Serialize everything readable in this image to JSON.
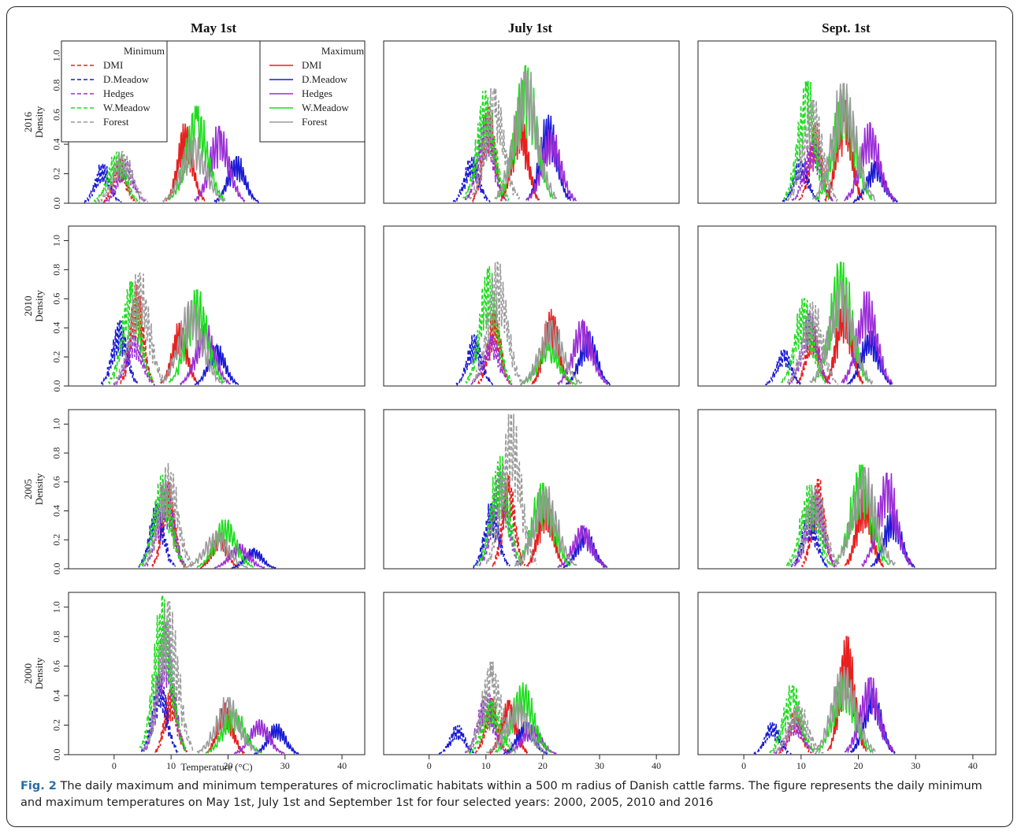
{
  "caption": {
    "label": "Fig. 2",
    "text": "The daily maximum and minimum temperatures of microclimatic habitats within a 500 m radius of Danish cattle farms. The figure represents the daily minimum and maximum temperatures on May 1st, July 1st and September 1st for four selected years: 2000, 2005, 2010 and 2016"
  },
  "chart_data": {
    "type": "line",
    "columns": [
      "May 1st",
      "July 1st",
      "Sept. 1st"
    ],
    "rows": [
      "2016",
      "2010",
      "2005",
      "2000"
    ],
    "ylabel": "Density",
    "xlabel": "Temperature (°C)",
    "xlim": [
      -8,
      44
    ],
    "ylim": [
      0,
      1.1
    ],
    "xticks": [
      "0",
      "10",
      "20",
      "30",
      "40"
    ],
    "yticks": [
      "0.0",
      "0.2",
      "0.4",
      "0.6",
      "0.8",
      "1.0"
    ],
    "legend_min": {
      "title": "Minimum",
      "style": "dashed",
      "entries": [
        "DMI",
        "D.Meadow",
        "Hedges",
        "W.Meadow",
        "Forest"
      ]
    },
    "legend_max": {
      "title": "Maximum",
      "style": "solid",
      "entries": [
        "DMI",
        "D.Meadow",
        "Hedges",
        "W.Meadow",
        "Forest"
      ]
    },
    "colors": {
      "DMI": "#e8201f",
      "D.Meadow": "#1b1bd6",
      "Hedges": "#9b2fd6",
      "W.Meadow": "#1fdc1f",
      "Forest": "#9a9a9a"
    },
    "habitats": [
      "DMI",
      "D.Meadow",
      "Hedges",
      "W.Meadow",
      "Forest"
    ],
    "panels": [
      {
        "row": "2016",
        "column": "May 1st",
        "min": {
          "DMI": [
            1,
            0.3
          ],
          "D.Meadow": [
            -2,
            0.27
          ],
          "Hedges": [
            2,
            0.3
          ],
          "W.Meadow": [
            0.5,
            0.35
          ],
          "Forest": [
            1.5,
            0.35
          ]
        },
        "max": {
          "DMI": [
            12.5,
            0.54
          ],
          "D.Meadow": [
            21.5,
            0.32
          ],
          "Hedges": [
            18.5,
            0.52
          ],
          "W.Meadow": [
            14.5,
            0.66
          ],
          "Forest": [
            14,
            0.45
          ]
        }
      },
      {
        "row": "2016",
        "column": "July 1st",
        "min": {
          "DMI": [
            10.5,
            0.65
          ],
          "D.Meadow": [
            7.5,
            0.32
          ],
          "Hedges": [
            10,
            0.6
          ],
          "W.Meadow": [
            10,
            0.76
          ],
          "Forest": [
            11.5,
            0.78
          ]
        },
        "max": {
          "DMI": [
            16,
            0.65
          ],
          "D.Meadow": [
            21,
            0.6
          ],
          "Hedges": [
            21.5,
            0.5
          ],
          "W.Meadow": [
            17,
            0.93
          ],
          "Forest": [
            17,
            0.9
          ]
        }
      },
      {
        "row": "2016",
        "column": "Sept. 1st",
        "min": {
          "DMI": [
            12.5,
            0.55
          ],
          "D.Meadow": [
            10,
            0.3
          ],
          "Hedges": [
            12,
            0.45
          ],
          "W.Meadow": [
            11,
            0.83
          ],
          "Forest": [
            12,
            0.7
          ]
        },
        "max": {
          "DMI": [
            17.5,
            0.7
          ],
          "D.Meadow": [
            23,
            0.28
          ],
          "Hedges": [
            22,
            0.55
          ],
          "W.Meadow": [
            17.5,
            0.78
          ],
          "Forest": [
            17.5,
            0.81
          ]
        }
      },
      {
        "row": "2010",
        "column": "May 1st",
        "min": {
          "DMI": [
            4,
            0.7
          ],
          "D.Meadow": [
            1,
            0.45
          ],
          "Hedges": [
            3.5,
            0.35
          ],
          "W.Meadow": [
            3,
            0.72
          ],
          "Forest": [
            4.5,
            0.78
          ]
        },
        "max": {
          "DMI": [
            11.5,
            0.43
          ],
          "D.Meadow": [
            18,
            0.28
          ],
          "Hedges": [
            16,
            0.42
          ],
          "W.Meadow": [
            14.5,
            0.66
          ],
          "Forest": [
            13.5,
            0.59
          ]
        }
      },
      {
        "row": "2010",
        "column": "July 1st",
        "min": {
          "DMI": [
            11.5,
            0.5
          ],
          "D.Meadow": [
            8,
            0.35
          ],
          "Hedges": [
            11,
            0.35
          ],
          "W.Meadow": [
            10.5,
            0.82
          ],
          "Forest": [
            12,
            0.85
          ]
        },
        "max": {
          "DMI": [
            21.5,
            0.53
          ],
          "D.Meadow": [
            28,
            0.37
          ],
          "Hedges": [
            27,
            0.45
          ],
          "W.Meadow": [
            21,
            0.3
          ],
          "Forest": [
            21.5,
            0.45
          ]
        }
      },
      {
        "row": "2010",
        "column": "Sept. 1st",
        "min": {
          "DMI": [
            12,
            0.42
          ],
          "D.Meadow": [
            7,
            0.25
          ],
          "Hedges": [
            11.5,
            0.5
          ],
          "W.Meadow": [
            10.5,
            0.6
          ],
          "Forest": [
            12,
            0.58
          ]
        },
        "max": {
          "DMI": [
            17.5,
            0.62
          ],
          "D.Meadow": [
            22,
            0.38
          ],
          "Hedges": [
            21.5,
            0.65
          ],
          "W.Meadow": [
            17,
            0.85
          ],
          "Forest": [
            17,
            0.72
          ]
        }
      },
      {
        "row": "2005",
        "column": "May 1st",
        "min": {
          "DMI": [
            9.5,
            0.6
          ],
          "D.Meadow": [
            7.5,
            0.45
          ],
          "Hedges": [
            9,
            0.6
          ],
          "W.Meadow": [
            8.5,
            0.65
          ],
          "Forest": [
            9.5,
            0.73
          ]
        },
        "max": {
          "DMI": [
            18.5,
            0.25
          ],
          "D.Meadow": [
            24.5,
            0.14
          ],
          "Hedges": [
            22,
            0.17
          ],
          "W.Meadow": [
            19.5,
            0.34
          ],
          "Forest": [
            18,
            0.26
          ]
        }
      },
      {
        "row": "2005",
        "column": "July 1st",
        "min": {
          "DMI": [
            14,
            0.65
          ],
          "D.Meadow": [
            11,
            0.45
          ],
          "Hedges": [
            12.5,
            0.7
          ],
          "W.Meadow": [
            12.5,
            0.78
          ],
          "Forest": [
            14.5,
            1.07
          ]
        },
        "max": {
          "DMI": [
            20.5,
            0.5
          ],
          "D.Meadow": [
            27.5,
            0.28
          ],
          "Hedges": [
            27,
            0.3
          ],
          "W.Meadow": [
            20,
            0.59
          ],
          "Forest": [
            20.5,
            0.57
          ]
        }
      },
      {
        "row": "2005",
        "column": "Sept. 1st",
        "min": {
          "DMI": [
            13,
            0.62
          ],
          "D.Meadow": [
            11.5,
            0.4
          ],
          "Hedges": [
            12.5,
            0.55
          ],
          "W.Meadow": [
            11.5,
            0.58
          ],
          "Forest": [
            12.5,
            0.57
          ]
        },
        "max": {
          "DMI": [
            21,
            0.55
          ],
          "D.Meadow": [
            26,
            0.4
          ],
          "Hedges": [
            25,
            0.66
          ],
          "W.Meadow": [
            20.5,
            0.72
          ],
          "Forest": [
            21,
            0.7
          ]
        }
      },
      {
        "row": "2000",
        "column": "May 1st",
        "min": {
          "DMI": [
            10,
            0.45
          ],
          "D.Meadow": [
            8,
            0.55
          ],
          "Hedges": [
            9,
            0.9
          ],
          "W.Meadow": [
            8.5,
            1.08
          ],
          "Forest": [
            9.5,
            1.04
          ]
        },
        "max": {
          "DMI": [
            19.5,
            0.35
          ],
          "D.Meadow": [
            28.5,
            0.21
          ],
          "Hedges": [
            25.5,
            0.24
          ],
          "W.Meadow": [
            21,
            0.31
          ],
          "Forest": [
            20,
            0.39
          ]
        }
      },
      {
        "row": "2000",
        "column": "July 1st",
        "min": {
          "DMI": [
            11,
            0.38
          ],
          "D.Meadow": [
            5,
            0.2
          ],
          "Hedges": [
            10,
            0.42
          ],
          "W.Meadow": [
            11,
            0.37
          ],
          "Forest": [
            11,
            0.63
          ]
        },
        "max": {
          "DMI": [
            14,
            0.37
          ],
          "D.Meadow": [
            17,
            0.22
          ],
          "Hedges": [
            18,
            0.2
          ],
          "W.Meadow": [
            16.5,
            0.49
          ],
          "Forest": [
            15.5,
            0.36
          ]
        }
      },
      {
        "row": "2000",
        "column": "Sept. 1st",
        "min": {
          "DMI": [
            9,
            0.3
          ],
          "D.Meadow": [
            5,
            0.22
          ],
          "Hedges": [
            9,
            0.25
          ],
          "W.Meadow": [
            8.5,
            0.47
          ],
          "Forest": [
            9.5,
            0.34
          ]
        },
        "max": {
          "DMI": [
            18,
            0.8
          ],
          "D.Meadow": [
            22.5,
            0.45
          ],
          "Hedges": [
            22,
            0.52
          ],
          "W.Meadow": [
            17.5,
            0.55
          ],
          "Forest": [
            17.5,
            0.6
          ]
        }
      }
    ]
  }
}
